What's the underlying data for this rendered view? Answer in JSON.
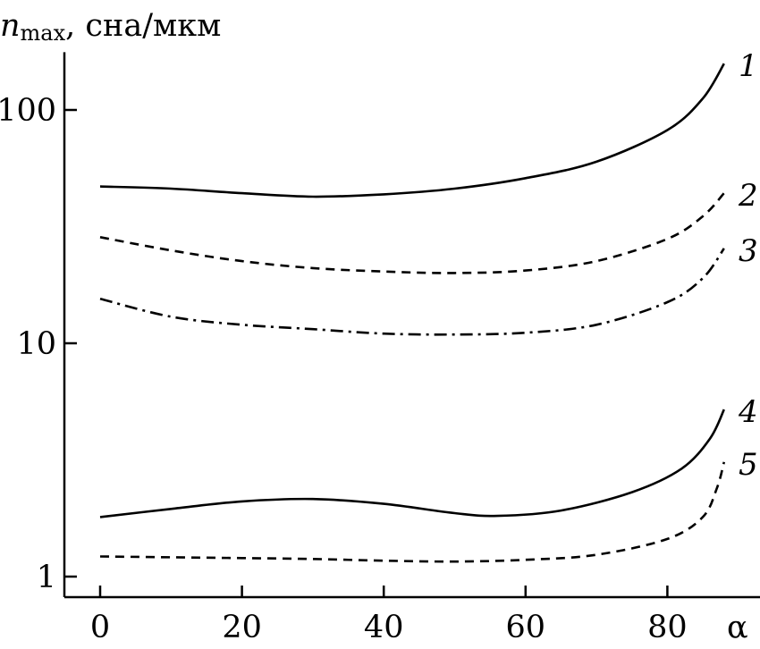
{
  "chart_data": {
    "type": "line",
    "title": "",
    "ylabel_main": "n",
    "ylabel_sub": "max",
    "ylabel_rest": ", сна/мкм",
    "xlabel": "α",
    "xlim": [
      0,
      90
    ],
    "ylim": [
      0.9,
      180
    ],
    "yscale": "log",
    "grid": false,
    "x_ticks": [
      "0",
      "20",
      "40",
      "60",
      "80"
    ],
    "y_ticks": [
      "1",
      "10",
      "100"
    ],
    "series": [
      {
        "name": "1",
        "style": "solid",
        "x": [
          0,
          10,
          20,
          30,
          40,
          50,
          60,
          70,
          80,
          85,
          88
        ],
        "y": [
          47,
          46,
          44,
          42.5,
          43.5,
          46,
          51,
          60,
          82,
          112,
          158
        ]
      },
      {
        "name": "2",
        "style": "dashed",
        "x": [
          0,
          10,
          20,
          30,
          40,
          50,
          60,
          70,
          80,
          85,
          88
        ],
        "y": [
          28.5,
          25,
          22.5,
          21,
          20.3,
          20,
          20.5,
          22.5,
          28,
          35,
          44
        ]
      },
      {
        "name": "3",
        "style": "dashdot",
        "x": [
          0,
          10,
          20,
          30,
          40,
          50,
          60,
          70,
          80,
          85,
          88
        ],
        "y": [
          15.5,
          13,
          12,
          11.5,
          11,
          10.9,
          11.1,
          12,
          15,
          19,
          25.5
        ]
      },
      {
        "name": "4",
        "style": "solid",
        "x": [
          0,
          10,
          20,
          30,
          40,
          50,
          56,
          65,
          75,
          82,
          86,
          88
        ],
        "y": [
          1.8,
          1.95,
          2.1,
          2.15,
          2.05,
          1.87,
          1.82,
          1.92,
          2.3,
          2.9,
          3.9,
          5.2
        ]
      },
      {
        "name": "5",
        "style": "dashed",
        "x": [
          0,
          10,
          20,
          30,
          40,
          50,
          60,
          70,
          80,
          85,
          87,
          88
        ],
        "y": [
          1.22,
          1.21,
          1.2,
          1.19,
          1.17,
          1.16,
          1.18,
          1.24,
          1.45,
          1.8,
          2.4,
          3.1
        ]
      }
    ]
  }
}
